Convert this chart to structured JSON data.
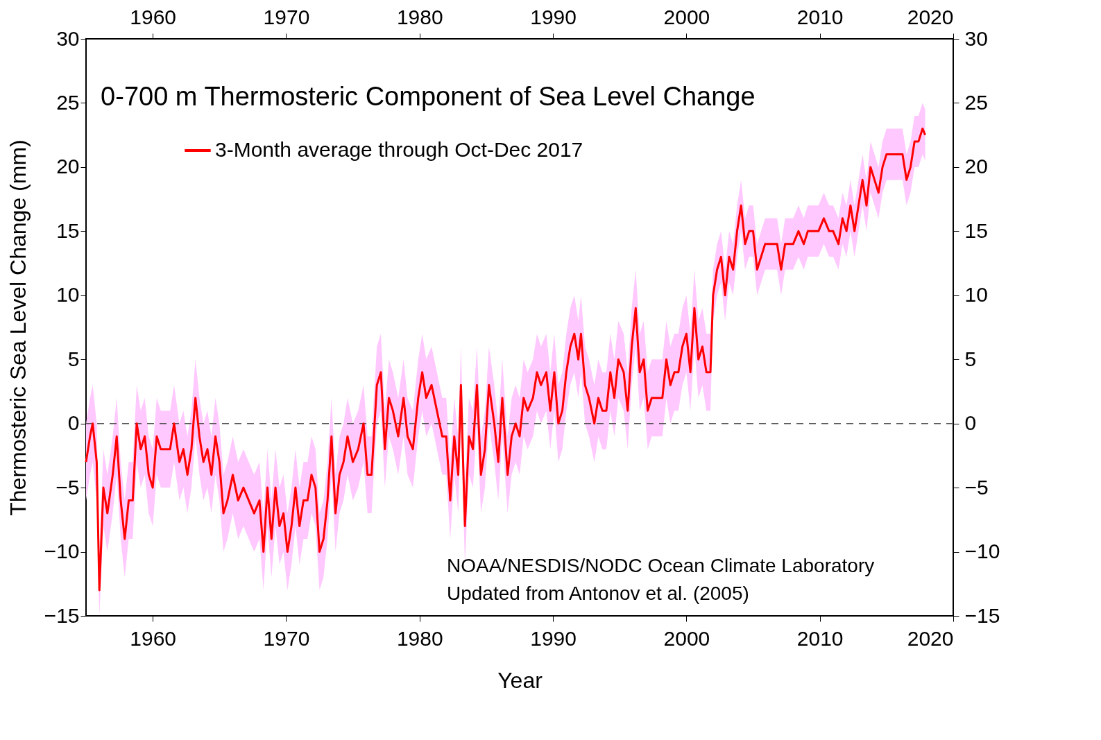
{
  "chart_data": {
    "type": "line",
    "title": "0-700 m Thermosteric Component of Sea Level Change",
    "xlabel": "Year",
    "ylabel": "Thermosteric Sea Level Change (mm)",
    "xlim": [
      1955,
      2020
    ],
    "xticks": [
      1960,
      1970,
      1980,
      1990,
      2000,
      2010,
      2020
    ],
    "x2lim": [
      1955,
      2020
    ],
    "x2ticks": [
      1960,
      1970,
      1980,
      1990,
      2000,
      2010,
      2020
    ],
    "ylim": [
      -15,
      30
    ],
    "yticks": [
      -15,
      -10,
      -5,
      0,
      5,
      10,
      15,
      20,
      25,
      30
    ],
    "y2lim": [
      -15,
      30
    ],
    "y2ticks": [
      -15,
      -10,
      -5,
      0,
      5,
      10,
      15,
      20,
      25,
      30
    ],
    "grid": false,
    "legend": "top left",
    "marker": "none",
    "line_style": "solid",
    "ref_lines": [
      {
        "axis": "y",
        "value": 0,
        "line_style": "dashed",
        "color": "#555555"
      }
    ],
    "annotations": [
      "NOAA/NESDIS/NODC Ocean Climate Laboratory",
      "Updated from Antonov et al. (2005)"
    ],
    "series": [
      {
        "name": "3-Month average through Oct-Dec 2017",
        "color": "#ff0000",
        "x": [
          1955.0,
          1955.3,
          1955.5,
          1955.8,
          1956.0,
          1956.3,
          1956.6,
          1957.0,
          1957.3,
          1957.6,
          1957.9,
          1958.2,
          1958.5,
          1958.8,
          1959.1,
          1959.4,
          1959.7,
          1960.0,
          1960.3,
          1960.6,
          1961.0,
          1961.3,
          1961.6,
          1962.0,
          1962.3,
          1962.6,
          1962.9,
          1963.2,
          1963.5,
          1963.8,
          1964.1,
          1964.4,
          1964.7,
          1965.0,
          1965.3,
          1965.6,
          1966.0,
          1966.4,
          1966.8,
          1967.2,
          1967.6,
          1968.0,
          1968.3,
          1968.6,
          1968.9,
          1969.2,
          1969.5,
          1969.8,
          1970.1,
          1970.4,
          1970.7,
          1971.0,
          1971.3,
          1971.6,
          1971.9,
          1972.2,
          1972.5,
          1972.8,
          1973.1,
          1973.4,
          1973.7,
          1974.0,
          1974.3,
          1974.6,
          1975.0,
          1975.4,
          1975.8,
          1976.1,
          1976.4,
          1976.8,
          1977.1,
          1977.4,
          1977.7,
          1978.0,
          1978.4,
          1978.8,
          1979.1,
          1979.5,
          1979.9,
          1980.2,
          1980.5,
          1980.9,
          1981.3,
          1981.7,
          1982.0,
          1982.3,
          1982.6,
          1982.9,
          1983.1,
          1983.4,
          1983.7,
          1984.0,
          1984.3,
          1984.6,
          1984.9,
          1985.2,
          1985.6,
          1985.9,
          1986.2,
          1986.6,
          1986.9,
          1987.2,
          1987.5,
          1987.8,
          1988.1,
          1988.5,
          1988.8,
          1989.1,
          1989.5,
          1989.8,
          1990.1,
          1990.4,
          1990.7,
          1991.0,
          1991.3,
          1991.6,
          1991.9,
          1992.1,
          1992.4,
          1992.7,
          1993.1,
          1993.4,
          1993.7,
          1994.0,
          1994.3,
          1994.6,
          1994.9,
          1995.3,
          1995.6,
          1995.9,
          1996.2,
          1996.5,
          1996.8,
          1997.1,
          1997.4,
          1997.8,
          1998.2,
          1998.5,
          1998.8,
          1999.1,
          1999.4,
          1999.7,
          2000.0,
          2000.3,
          2000.6,
          2000.9,
          2001.2,
          2001.5,
          2001.8,
          2002.0,
          2002.3,
          2002.6,
          2002.9,
          2003.2,
          2003.5,
          2003.8,
          2004.1,
          2004.4,
          2004.7,
          2005.0,
          2005.3,
          2005.6,
          2005.9,
          2006.2,
          2006.5,
          2006.8,
          2007.1,
          2007.4,
          2007.7,
          2008.0,
          2008.4,
          2008.8,
          2009.1,
          2009.5,
          2009.9,
          2010.3,
          2010.7,
          2011.0,
          2011.4,
          2011.7,
          2012.0,
          2012.3,
          2012.6,
          2012.9,
          2013.2,
          2013.5,
          2013.8,
          2014.1,
          2014.4,
          2014.7,
          2015.0,
          2015.4,
          2015.8,
          2016.2,
          2016.5,
          2016.8,
          2017.1,
          2017.4,
          2017.7,
          2017.9
        ],
        "values": [
          -3,
          -1,
          0,
          -3,
          -13,
          -5,
          -7,
          -4,
          -1,
          -6,
          -9,
          -6,
          -6,
          0,
          -2,
          -1,
          -4,
          -5,
          -1,
          -2,
          -2,
          -2,
          0,
          -3,
          -2,
          -4,
          -2,
          2,
          -1,
          -3,
          -2,
          -4,
          -1,
          -3,
          -7,
          -6,
          -4,
          -6,
          -5,
          -6,
          -7,
          -6,
          -10,
          -5,
          -9,
          -5,
          -8,
          -7,
          -10,
          -8,
          -5,
          -8,
          -6,
          -6,
          -4,
          -5,
          -10,
          -9,
          -6,
          -1,
          -7,
          -4,
          -3,
          -1,
          -3,
          -2,
          0,
          -4,
          -4,
          3,
          4,
          -2,
          2,
          1,
          -1,
          2,
          -1,
          -2,
          2,
          4,
          2,
          3,
          1,
          -1,
          -1,
          -6,
          -1,
          -4,
          3,
          -8,
          -1,
          -2,
          3,
          -4,
          -2,
          3,
          0,
          -3,
          2,
          -4,
          -1,
          0,
          -1,
          2,
          1,
          2,
          4,
          3,
          4,
          1,
          4,
          0,
          1,
          4,
          6,
          7,
          5,
          7,
          3,
          2,
          0,
          2,
          1,
          1,
          4,
          2,
          5,
          4,
          1,
          6,
          9,
          4,
          5,
          1,
          2,
          2,
          2,
          5,
          3,
          4,
          4,
          6,
          7,
          4,
          9,
          5,
          6,
          4,
          4,
          10,
          12,
          13,
          10,
          13,
          12,
          15,
          17,
          14,
          15,
          15,
          12,
          13,
          14,
          14,
          14,
          14,
          12,
          14,
          14,
          14,
          15,
          14,
          15,
          15,
          15,
          16,
          15,
          15,
          14,
          16,
          15,
          17,
          15,
          17,
          19,
          17,
          20,
          19,
          18,
          20,
          21,
          21,
          21,
          21,
          19,
          20,
          22,
          22,
          23,
          22.5
        ],
        "lower": [
          -6,
          -4,
          -3,
          -6,
          -15,
          -8,
          -10,
          -7,
          -4,
          -9,
          -12,
          -9,
          -9,
          -3,
          -5,
          -4,
          -7,
          -8,
          -4,
          -5,
          -5,
          -5,
          -3,
          -6,
          -5,
          -7,
          -5,
          -1,
          -4,
          -6,
          -5,
          -7,
          -4,
          -6,
          -10,
          -9,
          -7,
          -9,
          -8,
          -9,
          -10,
          -9,
          -13,
          -8,
          -12,
          -8,
          -11,
          -10,
          -13,
          -11,
          -8,
          -11,
          -9,
          -9,
          -7,
          -8,
          -13,
          -12,
          -9,
          -4,
          -10,
          -7,
          -6,
          -4,
          -6,
          -5,
          -3,
          -7,
          -7,
          0,
          1,
          -5,
          -1,
          -2,
          -4,
          -1,
          -4,
          -5,
          -1,
          1,
          -1,
          0,
          -2,
          -4,
          -4,
          -9,
          -4,
          -7,
          0,
          -11,
          -4,
          -5,
          0,
          -7,
          -5,
          0,
          -3,
          -6,
          -1,
          -7,
          -4,
          -3,
          -4,
          -1,
          -2,
          -1,
          1,
          0,
          1,
          -2,
          1,
          -3,
          -2,
          1,
          3,
          4,
          2,
          4,
          0,
          -1,
          -3,
          -1,
          -2,
          -2,
          1,
          -1,
          2,
          1,
          -2,
          3,
          6,
          1,
          2,
          -2,
          -1,
          -1,
          -1,
          2,
          0,
          1,
          1,
          3,
          4,
          1,
          6,
          2,
          3,
          1,
          1,
          8,
          10,
          11,
          8,
          11,
          10,
          13,
          15,
          12,
          13,
          13,
          10,
          11,
          12,
          12,
          12,
          12,
          10,
          12,
          12,
          12,
          13,
          12,
          13,
          13,
          13,
          14,
          13,
          13,
          12,
          14,
          13,
          15,
          13,
          15,
          17,
          15,
          18,
          17,
          16,
          18,
          19,
          19,
          19,
          19,
          17,
          18,
          20,
          20,
          21,
          20.5
        ],
        "upper": [
          0,
          2,
          3,
          0,
          -10,
          -2,
          -4,
          -1,
          2,
          -3,
          -6,
          -3,
          -3,
          3,
          1,
          2,
          -1,
          -2,
          2,
          1,
          1,
          1,
          3,
          0,
          1,
          -1,
          1,
          5,
          2,
          0,
          1,
          -1,
          2,
          0,
          -4,
          -3,
          -1,
          -3,
          -2,
          -3,
          -4,
          -3,
          -7,
          -2,
          -6,
          -2,
          -5,
          -4,
          -7,
          -5,
          -2,
          -5,
          -3,
          -3,
          -1,
          -2,
          -7,
          -6,
          -3,
          2,
          -4,
          -1,
          0,
          2,
          0,
          1,
          3,
          -1,
          -1,
          6,
          7,
          1,
          5,
          4,
          2,
          5,
          2,
          1,
          5,
          7,
          5,
          6,
          4,
          2,
          2,
          -3,
          2,
          -1,
          6,
          -5,
          2,
          1,
          6,
          -1,
          1,
          6,
          3,
          0,
          5,
          -1,
          2,
          3,
          2,
          5,
          4,
          5,
          7,
          6,
          7,
          4,
          7,
          3,
          4,
          7,
          9,
          10,
          8,
          10,
          6,
          5,
          3,
          5,
          4,
          4,
          7,
          5,
          8,
          7,
          4,
          9,
          12,
          7,
          8,
          4,
          5,
          5,
          5,
          8,
          6,
          7,
          7,
          9,
          10,
          7,
          12,
          8,
          9,
          7,
          7,
          12,
          14,
          15,
          12,
          15,
          14,
          17,
          19,
          16,
          17,
          17,
          14,
          15,
          16,
          16,
          16,
          16,
          14,
          16,
          16,
          16,
          17,
          16,
          17,
          17,
          17,
          18,
          17,
          17,
          16,
          18,
          17,
          19,
          17,
          19,
          21,
          19,
          22,
          21,
          20,
          22,
          23,
          23,
          23,
          23,
          21,
          22,
          24,
          24,
          25,
          24.5
        ]
      }
    ]
  }
}
